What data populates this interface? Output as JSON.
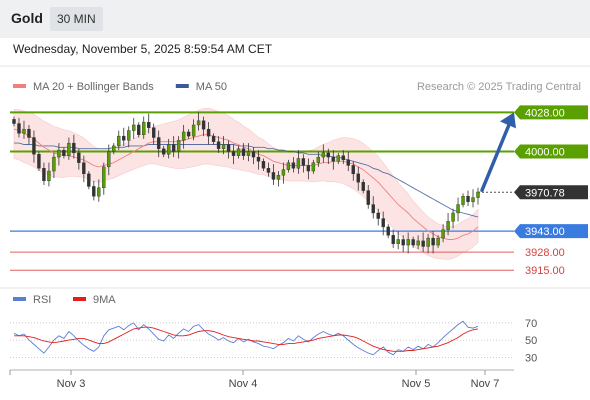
{
  "header": {
    "instrument": "Gold",
    "timeframe": "30 MIN",
    "datetime": "Wednesday, November 5, 2025 8:59:54 AM CET"
  },
  "legend": {
    "items": [
      {
        "label": "MA 20 + Bollinger Bands",
        "color": "#f08080"
      },
      {
        "label": "MA 50",
        "color": "#3a5a9a"
      }
    ],
    "credit": "Research © 2025 Trading Central"
  },
  "rsi_legend": {
    "items": [
      {
        "label": "RSI",
        "color": "#5b7fd6"
      },
      {
        "label": "9MA",
        "color": "#e02020"
      }
    ]
  },
  "colors": {
    "resistance": "#5aa000",
    "pivot": "#3a7be0",
    "support": "#e06060",
    "last_price_bg": "#333333",
    "arrow": "#2e5fa8",
    "candle": "#55a000",
    "band_fill": "#fde4e4"
  },
  "chart_data": [
    {
      "type": "candlestick",
      "yaxis": {
        "scale": "linear",
        "ylim": [
          3908,
          4034
        ]
      },
      "xaxis": {
        "ticks": [
          "Nov 3",
          "Nov 4",
          "Nov 5",
          "Nov 7"
        ]
      },
      "levels": [
        {
          "value": 4028.0,
          "label": "4028.00",
          "kind": "resistance"
        },
        {
          "value": 4000.0,
          "label": "4000.00",
          "kind": "resistance"
        },
        {
          "value": 3970.78,
          "label": "3970.78",
          "kind": "last"
        },
        {
          "value": 3943.0,
          "label": "3943.00",
          "kind": "pivot"
        },
        {
          "value": 3928.0,
          "label": "3928.00",
          "kind": "support"
        },
        {
          "value": 3915.0,
          "label": "3915.00",
          "kind": "support"
        }
      ],
      "forecast_arrow": {
        "from": 3970.78,
        "to": 4028.0
      },
      "closes": [
        4020,
        4013,
        4016,
        4010,
        3998,
        3988,
        3979,
        3986,
        3996,
        4001,
        3997,
        4006,
        3999,
        3992,
        3984,
        3975,
        3968,
        3974,
        3989,
        4000,
        4004,
        4011,
        4008,
        4015,
        4019,
        4012,
        4021,
        4017,
        4010,
        4002,
        3998,
        4005,
        4000,
        4008,
        4014,
        4011,
        4019,
        4022,
        4016,
        4011,
        4007,
        4002,
        4005,
        4000,
        3997,
        4002,
        3997,
        4000,
        3996,
        3993,
        3988,
        3985,
        3980,
        3983,
        3987,
        3992,
        3988,
        3995,
        3990,
        3986,
        3992,
        3996,
        3999,
        3996,
        3993,
        3997,
        3994,
        3990,
        3984,
        3978,
        3972,
        3962,
        3956,
        3952,
        3946,
        3940,
        3934,
        3937,
        3933,
        3937,
        3933,
        3936,
        3932,
        3938,
        3933,
        3938,
        3944,
        3950,
        3956,
        3962,
        3968,
        3964,
        3967,
        3971
      ],
      "ma20": [
        4016,
        4015,
        4013,
        4011,
        4009,
        4006,
        4003,
        4001,
        3999,
        3998,
        3997,
        3997,
        3996,
        3995,
        3994,
        3992,
        3990,
        3989,
        3990,
        3991,
        3992,
        3994,
        3996,
        3998,
        4000,
        4002,
        4004,
        4006,
        4007,
        4007,
        4007,
        4007,
        4007,
        4007,
        4008,
        4009,
        4010,
        4011,
        4012,
        4012,
        4011,
        4010,
        4009,
        4008,
        4006,
        4005,
        4003,
        4002,
        4000,
        3998,
        3997,
        3995,
        3993,
        3992,
        3991,
        3990,
        3990,
        3990,
        3990,
        3990,
        3990,
        3991,
        3992,
        3992,
        3993,
        3993,
        3993,
        3992,
        3991,
        3989,
        3987,
        3984,
        3981,
        3978,
        3974,
        3970,
        3966,
        3962,
        3959,
        3956,
        3952,
        3949,
        3946,
        3943,
        3941,
        3939,
        3938,
        3937,
        3937,
        3938,
        3940,
        3941,
        3943,
        3946
      ],
      "ma50": [
        4006,
        4006,
        4005,
        4005,
        4005,
        4004,
        4004,
        4004,
        4004,
        4003,
        4003,
        4003,
        4003,
        4002,
        4002,
        4002,
        4002,
        4002,
        4002,
        4002,
        4003,
        4003,
        4003,
        4004,
        4004,
        4004,
        4004,
        4005,
        4005,
        4005,
        4005,
        4005,
        4005,
        4005,
        4005,
        4005,
        4005,
        4005,
        4005,
        4005,
        4005,
        4005,
        4005,
        4005,
        4005,
        4004,
        4004,
        4004,
        4003,
        4003,
        4003,
        4002,
        4002,
        4001,
        4001,
        4000,
        4000,
        3999,
        3999,
        3998,
        3998,
        3998,
        3997,
        3997,
        3996,
        3996,
        3995,
        3994,
        3993,
        3992,
        3991,
        3990,
        3988,
        3987,
        3985,
        3984,
        3982,
        3980,
        3978,
        3976,
        3974,
        3972,
        3970,
        3968,
        3966,
        3964,
        3962,
        3960,
        3958,
        3957,
        3956,
        3955,
        3954,
        3953
      ]
    },
    {
      "type": "line",
      "name": "RSI",
      "yaxis": {
        "ticks": [
          70,
          50,
          30
        ],
        "ylim": [
          20,
          78
        ]
      },
      "series": [
        {
          "name": "RSI",
          "values": [
            58,
            55,
            57,
            50,
            45,
            40,
            35,
            42,
            50,
            55,
            52,
            60,
            55,
            49,
            44,
            40,
            37,
            42,
            55,
            62,
            64,
            66,
            62,
            67,
            70,
            62,
            68,
            63,
            57,
            51,
            49,
            56,
            52,
            58,
            63,
            60,
            66,
            68,
            62,
            57,
            54,
            50,
            53,
            49,
            47,
            52,
            48,
            51,
            48,
            46,
            43,
            42,
            40,
            44,
            47,
            52,
            49,
            55,
            51,
            48,
            53,
            57,
            60,
            57,
            55,
            58,
            55,
            50,
            45,
            41,
            38,
            35,
            33,
            38,
            42,
            36,
            33,
            39,
            37,
            42,
            39,
            43,
            40,
            45,
            42,
            47,
            53,
            58,
            63,
            68,
            72,
            65,
            64,
            66
          ]
        },
        {
          "name": "9MA",
          "values": [
            55,
            55,
            55,
            54,
            53,
            51,
            49,
            48,
            47,
            48,
            49,
            50,
            51,
            52,
            52,
            50,
            48,
            46,
            46,
            48,
            51,
            54,
            57,
            60,
            63,
            64,
            65,
            65,
            64,
            62,
            60,
            58,
            56,
            55,
            55,
            56,
            58,
            60,
            61,
            61,
            60,
            58,
            56,
            54,
            53,
            52,
            51,
            50,
            49,
            49,
            48,
            47,
            46,
            45,
            45,
            46,
            46,
            47,
            48,
            49,
            50,
            52,
            53,
            54,
            55,
            56,
            56,
            55,
            54,
            52,
            49,
            46,
            43,
            41,
            39,
            38,
            37,
            37,
            37,
            38,
            38,
            39,
            40,
            41,
            42,
            43,
            45,
            47,
            50,
            53,
            57,
            60,
            62,
            63
          ]
        }
      ]
    }
  ]
}
